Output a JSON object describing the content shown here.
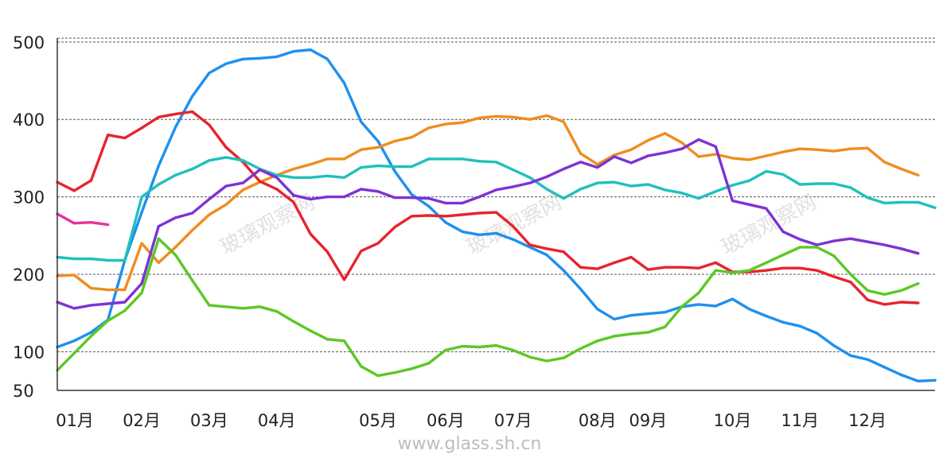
{
  "chart_data": {
    "type": "line",
    "title": "",
    "xlabel": "",
    "ylabel": "",
    "ylim": [
      50,
      505
    ],
    "y_ticks": [
      "50",
      "100",
      "200",
      "300",
      "400",
      "500"
    ],
    "x_range": [
      0,
      52
    ],
    "x_ticks": [
      {
        "label": "01月",
        "x": 0
      },
      {
        "label": "02月",
        "x": 5
      },
      {
        "label": "03月",
        "x": 9
      },
      {
        "label": "04月",
        "x": 13
      },
      {
        "label": "05月",
        "x": 19
      },
      {
        "label": "06月",
        "x": 23
      },
      {
        "label": "07月",
        "x": 27
      },
      {
        "label": "08月",
        "x": 32
      },
      {
        "label": "09月",
        "x": 35
      },
      {
        "label": "10月",
        "x": 40
      },
      {
        "label": "11月",
        "x": 44
      },
      {
        "label": "12月",
        "x": 48
      }
    ],
    "grid": "horizontal dashed",
    "legend": "none",
    "watermark": "玻璃观察网",
    "source": "www.glass.sh.cn",
    "series": [
      {
        "color": "#1e90ef",
        "values": [
          [
            0,
            106
          ],
          [
            1,
            114
          ],
          [
            2,
            125
          ],
          [
            3,
            141
          ],
          [
            4,
            218
          ],
          [
            5,
            280
          ],
          [
            6,
            340
          ],
          [
            7,
            390
          ],
          [
            8,
            430
          ],
          [
            9,
            460
          ],
          [
            10,
            472
          ],
          [
            11,
            478
          ],
          [
            12,
            479
          ],
          [
            13,
            481
          ],
          [
            14,
            488
          ],
          [
            15,
            490
          ],
          [
            16,
            478
          ],
          [
            17,
            447
          ],
          [
            18,
            397
          ],
          [
            19,
            372
          ],
          [
            20,
            333
          ],
          [
            21,
            303
          ],
          [
            22,
            288
          ],
          [
            23,
            267
          ],
          [
            24,
            255
          ],
          [
            25,
            251
          ],
          [
            26,
            253
          ],
          [
            27,
            245
          ],
          [
            28,
            235
          ],
          [
            29,
            225
          ],
          [
            30,
            205
          ],
          [
            31,
            181
          ],
          [
            32,
            155
          ],
          [
            33,
            142
          ],
          [
            34,
            147
          ],
          [
            35,
            149
          ],
          [
            36,
            151
          ],
          [
            37,
            158
          ],
          [
            38,
            161
          ],
          [
            39,
            159
          ],
          [
            40,
            168
          ],
          [
            41,
            155
          ],
          [
            42,
            146
          ],
          [
            43,
            138
          ],
          [
            44,
            133
          ],
          [
            45,
            124
          ],
          [
            46,
            108
          ],
          [
            47,
            95
          ],
          [
            48,
            90
          ],
          [
            49,
            80
          ],
          [
            50,
            70
          ],
          [
            51,
            62
          ],
          [
            52,
            63
          ]
        ]
      },
      {
        "color": "#f08c1e",
        "values": [
          [
            0,
            198
          ],
          [
            1,
            199
          ],
          [
            2,
            182
          ],
          [
            3,
            180
          ],
          [
            4,
            180
          ],
          [
            5,
            240
          ],
          [
            6,
            215
          ],
          [
            7,
            235
          ],
          [
            8,
            257
          ],
          [
            9,
            277
          ],
          [
            10,
            290
          ],
          [
            11,
            309
          ],
          [
            12,
            319
          ],
          [
            13,
            328
          ],
          [
            14,
            336
          ],
          [
            15,
            342
          ],
          [
            16,
            349
          ],
          [
            17,
            349
          ],
          [
            18,
            361
          ],
          [
            19,
            364
          ],
          [
            20,
            372
          ],
          [
            21,
            377
          ],
          [
            22,
            389
          ],
          [
            23,
            394
          ],
          [
            24,
            396
          ],
          [
            25,
            402
          ],
          [
            26,
            404
          ],
          [
            27,
            403
          ],
          [
            28,
            400
          ],
          [
            29,
            405
          ],
          [
            30,
            397
          ],
          [
            31,
            356
          ],
          [
            32,
            342
          ],
          [
            33,
            354
          ],
          [
            34,
            361
          ],
          [
            35,
            373
          ],
          [
            36,
            382
          ],
          [
            37,
            370
          ],
          [
            38,
            352
          ],
          [
            39,
            355
          ],
          [
            40,
            350
          ],
          [
            41,
            348
          ],
          [
            42,
            353
          ],
          [
            43,
            358
          ],
          [
            44,
            362
          ],
          [
            45,
            361
          ],
          [
            46,
            359
          ],
          [
            47,
            362
          ],
          [
            48,
            363
          ],
          [
            49,
            345
          ],
          [
            50,
            336
          ],
          [
            51,
            328
          ]
        ]
      },
      {
        "color": "#e8232d",
        "values": [
          [
            0,
            319
          ],
          [
            1,
            308
          ],
          [
            2,
            321
          ],
          [
            3,
            380
          ],
          [
            4,
            376
          ],
          [
            5,
            389
          ],
          [
            6,
            403
          ],
          [
            7,
            407
          ],
          [
            8,
            410
          ],
          [
            9,
            393
          ],
          [
            10,
            364
          ],
          [
            11,
            345
          ],
          [
            12,
            320
          ],
          [
            13,
            310
          ],
          [
            14,
            293
          ],
          [
            15,
            252
          ],
          [
            16,
            229
          ],
          [
            17,
            193
          ],
          [
            18,
            230
          ],
          [
            19,
            240
          ],
          [
            20,
            261
          ],
          [
            21,
            275
          ],
          [
            22,
            276
          ],
          [
            23,
            275
          ],
          [
            24,
            277
          ],
          [
            25,
            279
          ],
          [
            26,
            280
          ],
          [
            27,
            262
          ],
          [
            28,
            238
          ],
          [
            29,
            233
          ],
          [
            30,
            229
          ],
          [
            31,
            209
          ],
          [
            32,
            207
          ],
          [
            33,
            215
          ],
          [
            34,
            222
          ],
          [
            35,
            206
          ],
          [
            36,
            209
          ],
          [
            37,
            209
          ],
          [
            38,
            208
          ],
          [
            39,
            215
          ],
          [
            40,
            203
          ],
          [
            41,
            203
          ],
          [
            42,
            205
          ],
          [
            43,
            208
          ],
          [
            44,
            208
          ],
          [
            45,
            205
          ],
          [
            46,
            197
          ],
          [
            47,
            190
          ],
          [
            48,
            167
          ],
          [
            49,
            161
          ],
          [
            50,
            164
          ],
          [
            51,
            163
          ]
        ]
      },
      {
        "color": "#20c0bc",
        "values": [
          [
            0,
            222
          ],
          [
            1,
            220
          ],
          [
            2,
            220
          ],
          [
            3,
            218
          ],
          [
            4,
            218
          ],
          [
            5,
            300
          ],
          [
            6,
            316
          ],
          [
            7,
            328
          ],
          [
            8,
            336
          ],
          [
            9,
            347
          ],
          [
            10,
            351
          ],
          [
            11,
            347
          ],
          [
            12,
            336
          ],
          [
            13,
            328
          ],
          [
            14,
            325
          ],
          [
            15,
            325
          ],
          [
            16,
            327
          ],
          [
            17,
            325
          ],
          [
            18,
            338
          ],
          [
            19,
            340
          ],
          [
            20,
            339
          ],
          [
            21,
            339
          ],
          [
            22,
            349
          ],
          [
            23,
            349
          ],
          [
            24,
            349
          ],
          [
            25,
            346
          ],
          [
            26,
            345
          ],
          [
            27,
            335
          ],
          [
            28,
            325
          ],
          [
            29,
            310
          ],
          [
            30,
            298
          ],
          [
            31,
            310
          ],
          [
            32,
            318
          ],
          [
            33,
            319
          ],
          [
            34,
            314
          ],
          [
            35,
            316
          ],
          [
            36,
            309
          ],
          [
            37,
            305
          ],
          [
            38,
            298
          ],
          [
            39,
            307
          ],
          [
            40,
            315
          ],
          [
            41,
            321
          ],
          [
            42,
            333
          ],
          [
            43,
            329
          ],
          [
            44,
            316
          ],
          [
            45,
            317
          ],
          [
            46,
            317
          ],
          [
            47,
            312
          ],
          [
            48,
            299
          ],
          [
            49,
            292
          ],
          [
            50,
            293
          ],
          [
            51,
            293
          ],
          [
            52,
            286
          ]
        ]
      },
      {
        "color": "#7e32d4",
        "values": [
          [
            0,
            164
          ],
          [
            1,
            156
          ],
          [
            2,
            160
          ],
          [
            3,
            162
          ],
          [
            4,
            164
          ],
          [
            5,
            188
          ],
          [
            6,
            262
          ],
          [
            7,
            273
          ],
          [
            8,
            279
          ],
          [
            9,
            297
          ],
          [
            10,
            314
          ],
          [
            11,
            318
          ],
          [
            12,
            335
          ],
          [
            13,
            325
          ],
          [
            14,
            302
          ],
          [
            15,
            297
          ],
          [
            16,
            300
          ],
          [
            17,
            300
          ],
          [
            18,
            310
          ],
          [
            19,
            307
          ],
          [
            20,
            299
          ],
          [
            21,
            299
          ],
          [
            22,
            298
          ],
          [
            23,
            292
          ],
          [
            24,
            292
          ],
          [
            25,
            300
          ],
          [
            26,
            309
          ],
          [
            27,
            313
          ],
          [
            28,
            318
          ],
          [
            29,
            326
          ],
          [
            30,
            336
          ],
          [
            31,
            345
          ],
          [
            32,
            338
          ],
          [
            33,
            352
          ],
          [
            34,
            344
          ],
          [
            35,
            353
          ],
          [
            36,
            357
          ],
          [
            37,
            362
          ],
          [
            38,
            374
          ],
          [
            39,
            365
          ],
          [
            40,
            295
          ],
          [
            41,
            290
          ],
          [
            42,
            285
          ],
          [
            43,
            255
          ],
          [
            44,
            245
          ],
          [
            45,
            238
          ],
          [
            46,
            243
          ],
          [
            47,
            246
          ],
          [
            48,
            242
          ],
          [
            49,
            238
          ],
          [
            50,
            233
          ],
          [
            51,
            227
          ]
        ]
      },
      {
        "color": "#5cc824",
        "values": [
          [
            0,
            76
          ],
          [
            1,
            98
          ],
          [
            2,
            120
          ],
          [
            3,
            140
          ],
          [
            4,
            153
          ],
          [
            5,
            176
          ],
          [
            6,
            246
          ],
          [
            7,
            225
          ],
          [
            8,
            192
          ],
          [
            9,
            160
          ],
          [
            10,
            158
          ],
          [
            11,
            156
          ],
          [
            12,
            158
          ],
          [
            13,
            152
          ],
          [
            14,
            139
          ],
          [
            15,
            127
          ],
          [
            16,
            116
          ],
          [
            17,
            114
          ],
          [
            18,
            81
          ],
          [
            19,
            69
          ],
          [
            20,
            73
          ],
          [
            21,
            78
          ],
          [
            22,
            85
          ],
          [
            23,
            102
          ],
          [
            24,
            107
          ],
          [
            25,
            106
          ],
          [
            26,
            108
          ],
          [
            27,
            102
          ],
          [
            28,
            93
          ],
          [
            29,
            88
          ],
          [
            30,
            92
          ],
          [
            31,
            104
          ],
          [
            32,
            114
          ],
          [
            33,
            120
          ],
          [
            34,
            123
          ],
          [
            35,
            125
          ],
          [
            36,
            132
          ],
          [
            37,
            158
          ],
          [
            38,
            176
          ],
          [
            39,
            205
          ],
          [
            40,
            202
          ],
          [
            41,
            205
          ],
          [
            42,
            215
          ],
          [
            43,
            225
          ],
          [
            44,
            235
          ],
          [
            45,
            235
          ],
          [
            46,
            224
          ],
          [
            47,
            200
          ],
          [
            48,
            179
          ],
          [
            49,
            174
          ],
          [
            50,
            179
          ],
          [
            51,
            188
          ]
        ]
      },
      {
        "color": "#e8329a",
        "values": [
          [
            0,
            278
          ],
          [
            1,
            266
          ],
          [
            2,
            267
          ],
          [
            3,
            264
          ]
        ]
      }
    ]
  }
}
